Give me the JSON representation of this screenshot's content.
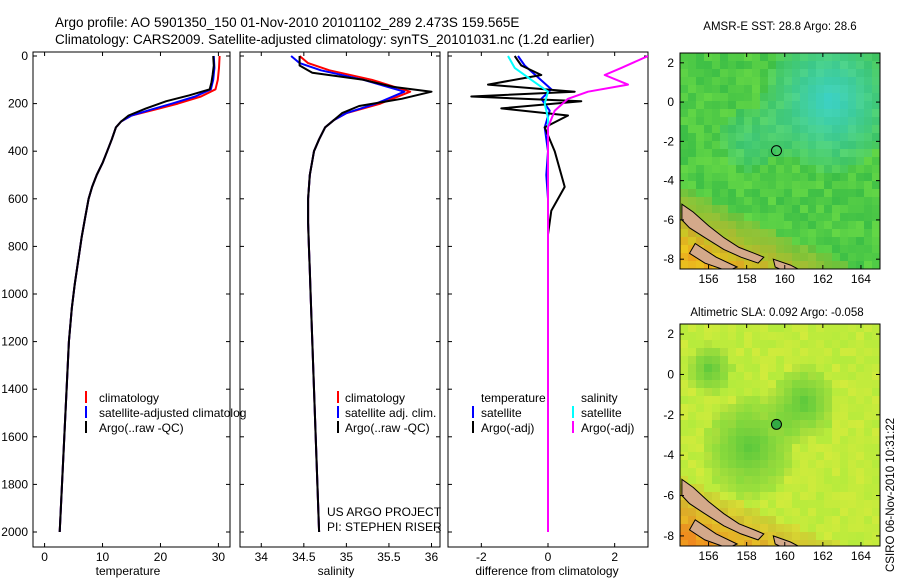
{
  "header": {
    "line1": "Argo profile: AO 5901350_150 01-Nov-2010 20101102_289 2.473S 159.565E",
    "line2": "Climatology: CARS2009. Satellite-adjusted climatology: synTS_20101031.nc (1.2d earlier)"
  },
  "colors": {
    "climatology": "#ff0000",
    "satellite": "#0000ff",
    "argo": "#000000",
    "satellite_diff_salinity": "#00ffff",
    "argo_diff_salinity": "#ff00ff",
    "land": "#d4a98a"
  },
  "depth_axis": {
    "min": 0,
    "max": 2000,
    "ticks": [
      "0",
      "200",
      "400",
      "600",
      "800",
      "1000",
      "1200",
      "1400",
      "1600",
      "1800",
      "2000"
    ]
  },
  "panels": {
    "temperature": {
      "xlabel": "temperature",
      "xlim": [
        -2,
        32
      ],
      "ticks": [
        "0",
        "10",
        "20",
        "30"
      ],
      "legend": [
        "climatology",
        "satellite-adjusted climatolog",
        "Argo(..raw -QC)"
      ]
    },
    "salinity": {
      "xlabel": "salinity",
      "xlim": [
        33.75,
        36.1
      ],
      "ticks": [
        "34",
        "34.5",
        "35",
        "35.5",
        "36"
      ],
      "legend": [
        "climatology",
        "satellite adj. clim.",
        "Argo(..raw -QC)"
      ],
      "credit1": "US ARGO PROJECT",
      "credit2": "PI: STEPHEN RISER"
    },
    "difference": {
      "xlabel": "difference from climatology",
      "xlim": [
        -3,
        3
      ],
      "ticks": [
        "-2",
        "0",
        "2"
      ],
      "legend_temp_title": "temperature",
      "legend_temp": [
        "satellite",
        "Argo(-adj)"
      ],
      "legend_sal_title": "salinity",
      "legend_sal": [
        "satellite",
        "Argo(-adj)"
      ]
    }
  },
  "maps": {
    "sst": {
      "title": "AMSR-E SST: 28.8 Argo: 28.6",
      "xticks": [
        "156",
        "158",
        "160",
        "162",
        "164"
      ],
      "yticks": [
        "2",
        "0",
        "-2",
        "-4",
        "-6",
        "-8"
      ],
      "xlim": [
        154.5,
        165
      ],
      "ylim": [
        -8.5,
        2.5
      ],
      "float_lon": 159.565,
      "float_lat": -2.473
    },
    "sla": {
      "title": "Altimetric SLA: 0.092 Argo: -0.058",
      "xticks": [
        "156",
        "158",
        "160",
        "162",
        "164"
      ],
      "yticks": [
        "2",
        "0",
        "-2",
        "-4",
        "-6",
        "-8"
      ],
      "xlim": [
        154.5,
        165
      ],
      "ylim": [
        -8.5,
        2.5
      ],
      "float_lon": 159.565,
      "float_lat": -2.473
    }
  },
  "stamp": "CSIRO 06-Nov-2010 10:31:22",
  "chart_data": [
    {
      "type": "line",
      "xlabel": "temperature",
      "ylabel": "",
      "xlim": [
        -2,
        32
      ],
      "ylim": [
        2000,
        0
      ],
      "series": [
        {
          "name": "climatology",
          "color": "#ff0000",
          "points": [
            [
              30.2,
              0
            ],
            [
              30.1,
              50
            ],
            [
              29.9,
              100
            ],
            [
              29.5,
              140
            ],
            [
              27,
              170
            ],
            [
              23,
              200
            ],
            [
              19,
              225
            ],
            [
              15,
              250
            ],
            [
              13.2,
              275
            ],
            [
              12.3,
              300
            ],
            [
              11.6,
              350
            ],
            [
              10.8,
              400
            ],
            [
              10,
              450
            ],
            [
              9,
              500
            ],
            [
              8.2,
              550
            ],
            [
              7.6,
              600
            ],
            [
              7,
              680
            ],
            [
              6.4,
              760
            ],
            [
              5.8,
              860
            ],
            [
              5.2,
              960
            ],
            [
              4.7,
              1060
            ],
            [
              4.2,
              1200
            ],
            [
              3.8,
              1400
            ],
            [
              3.4,
              1600
            ],
            [
              3,
              1800
            ],
            [
              2.6,
              2000
            ]
          ]
        },
        {
          "name": "satellite-adjusted climatolog",
          "color": "#0000ff",
          "points": [
            [
              29.2,
              0
            ],
            [
              29.3,
              50
            ],
            [
              29.1,
              100
            ],
            [
              28.7,
              140
            ],
            [
              26,
              170
            ],
            [
              22,
              200
            ],
            [
              18.4,
              225
            ],
            [
              15,
              250
            ],
            [
              13.2,
              275
            ],
            [
              12.3,
              300
            ],
            [
              11.6,
              350
            ],
            [
              10.8,
              400
            ],
            [
              10,
              450
            ],
            [
              9,
              500
            ],
            [
              8.2,
              550
            ],
            [
              7.6,
              600
            ],
            [
              7,
              680
            ],
            [
              6.4,
              760
            ],
            [
              5.8,
              860
            ],
            [
              5.2,
              960
            ],
            [
              4.7,
              1060
            ],
            [
              4.2,
              1200
            ],
            [
              3.8,
              1400
            ],
            [
              3.4,
              1600
            ],
            [
              3,
              1800
            ],
            [
              2.6,
              2000
            ]
          ]
        },
        {
          "name": "Argo(..raw -QC)",
          "color": "#000000",
          "points": [
            [
              29.1,
              0
            ],
            [
              29.2,
              40
            ],
            [
              29.0,
              80
            ],
            [
              28.8,
              110
            ],
            [
              28.5,
              140
            ],
            [
              25,
              165
            ],
            [
              21,
              190
            ],
            [
              17.5,
              220
            ],
            [
              14.5,
              250
            ],
            [
              13.2,
              275
            ],
            [
              12.3,
              300
            ],
            [
              11.6,
              350
            ],
            [
              10.8,
              400
            ],
            [
              10,
              450
            ],
            [
              9,
              500
            ],
            [
              8.2,
              550
            ],
            [
              7.6,
              600
            ],
            [
              7,
              680
            ],
            [
              6.4,
              760
            ],
            [
              5.8,
              860
            ],
            [
              5.2,
              960
            ],
            [
              4.7,
              1060
            ],
            [
              4.2,
              1200
            ],
            [
              3.8,
              1400
            ],
            [
              3.4,
              1600
            ],
            [
              3,
              1800
            ],
            [
              2.6,
              2000
            ]
          ]
        }
      ]
    },
    {
      "type": "line",
      "xlabel": "salinity",
      "ylabel": "",
      "xlim": [
        33.75,
        36.1
      ],
      "ylim": [
        2000,
        0
      ],
      "series": [
        {
          "name": "climatology",
          "color": "#ff0000",
          "points": [
            [
              34.45,
              0
            ],
            [
              34.55,
              30
            ],
            [
              34.8,
              60
            ],
            [
              35.3,
              100
            ],
            [
              35.75,
              150
            ],
            [
              35.4,
              200
            ],
            [
              35.0,
              240
            ],
            [
              34.85,
              270
            ],
            [
              34.75,
              300
            ],
            [
              34.68,
              350
            ],
            [
              34.62,
              400
            ],
            [
              34.57,
              500
            ],
            [
              34.55,
              600
            ],
            [
              34.55,
              700
            ],
            [
              34.56,
              800
            ],
            [
              34.57,
              900
            ],
            [
              34.58,
              1000
            ],
            [
              34.6,
              1200
            ],
            [
              34.62,
              1400
            ],
            [
              34.64,
              1600
            ],
            [
              34.66,
              1800
            ],
            [
              34.68,
              2000
            ]
          ]
        },
        {
          "name": "satellite adj. clim.",
          "color": "#0000ff",
          "points": [
            [
              34.35,
              0
            ],
            [
              34.45,
              30
            ],
            [
              34.7,
              60
            ],
            [
              35.2,
              100
            ],
            [
              35.68,
              150
            ],
            [
              35.35,
              200
            ],
            [
              35.0,
              240
            ],
            [
              34.85,
              270
            ],
            [
              34.75,
              300
            ],
            [
              34.68,
              350
            ],
            [
              34.62,
              400
            ],
            [
              34.57,
              500
            ],
            [
              34.55,
              600
            ],
            [
              34.55,
              700
            ],
            [
              34.56,
              800
            ],
            [
              34.57,
              900
            ],
            [
              34.58,
              1000
            ],
            [
              34.6,
              1200
            ],
            [
              34.62,
              1400
            ],
            [
              34.64,
              1600
            ],
            [
              34.66,
              1800
            ],
            [
              34.68,
              2000
            ]
          ]
        },
        {
          "name": "Argo(..raw -QC)",
          "color": "#000000",
          "points": [
            [
              34.45,
              0
            ],
            [
              34.45,
              40
            ],
            [
              34.6,
              70
            ],
            [
              35.2,
              100
            ],
            [
              35.55,
              130
            ],
            [
              36.0,
              150
            ],
            [
              35.65,
              180
            ],
            [
              35.15,
              210
            ],
            [
              34.95,
              240
            ],
            [
              34.85,
              270
            ],
            [
              34.75,
              300
            ],
            [
              34.68,
              350
            ],
            [
              34.62,
              400
            ],
            [
              34.57,
              500
            ],
            [
              34.55,
              600
            ],
            [
              34.55,
              700
            ],
            [
              34.56,
              800
            ],
            [
              34.57,
              900
            ],
            [
              34.58,
              1000
            ],
            [
              34.6,
              1200
            ],
            [
              34.62,
              1400
            ],
            [
              34.64,
              1600
            ],
            [
              34.66,
              1800
            ],
            [
              34.68,
              2000
            ]
          ]
        }
      ]
    },
    {
      "type": "line",
      "xlabel": "difference from climatology",
      "ylabel": "",
      "xlim": [
        -3,
        3
      ],
      "ylim": [
        2000,
        0
      ],
      "series": [
        {
          "name": "temperature satellite",
          "color": "#0000ff",
          "points": [
            [
              -0.9,
              0
            ],
            [
              -0.7,
              40
            ],
            [
              -0.3,
              90
            ],
            [
              0.1,
              140
            ],
            [
              -0.2,
              180
            ],
            [
              0.05,
              230
            ],
            [
              -0.1,
              300
            ],
            [
              0,
              400
            ],
            [
              -0.05,
              500
            ],
            [
              0,
              600
            ],
            [
              0,
              800
            ],
            [
              0,
              1000
            ],
            [
              0,
              1200
            ],
            [
              0,
              1400
            ],
            [
              0,
              1600
            ],
            [
              0,
              1800
            ],
            [
              0,
              2000
            ]
          ]
        },
        {
          "name": "temperature Argo(-adj)",
          "color": "#000000",
          "points": [
            [
              -1.0,
              0
            ],
            [
              -0.8,
              40
            ],
            [
              -0.2,
              80
            ],
            [
              -1.8,
              120
            ],
            [
              0.8,
              150
            ],
            [
              -2.3,
              170
            ],
            [
              1.0,
              190
            ],
            [
              -1.4,
              220
            ],
            [
              0.6,
              250
            ],
            [
              -0.1,
              300
            ],
            [
              0.2,
              400
            ],
            [
              0.5,
              550
            ],
            [
              0.1,
              650
            ],
            [
              0,
              750
            ],
            [
              0,
              1000
            ],
            [
              0,
              1400
            ],
            [
              0,
              1800
            ],
            [
              0,
              2000
            ]
          ]
        },
        {
          "name": "salinity satellite",
          "color": "#00ffff",
          "points": [
            [
              -1.2,
              0
            ],
            [
              -1.0,
              50
            ],
            [
              -0.5,
              100
            ],
            [
              0,
              150
            ],
            [
              -0.1,
              200
            ],
            [
              0,
              260
            ],
            [
              0,
              400
            ],
            [
              0,
              700
            ],
            [
              0,
              1000
            ],
            [
              0,
              1400
            ],
            [
              0,
              1800
            ],
            [
              0,
              2000
            ]
          ]
        },
        {
          "name": "salinity Argo(-adj)",
          "color": "#ff00ff",
          "points": [
            [
              3.0,
              0
            ],
            [
              2.2,
              50
            ],
            [
              1.7,
              80
            ],
            [
              2.4,
              120
            ],
            [
              1.2,
              150
            ],
            [
              0.6,
              180
            ],
            [
              0.2,
              230
            ],
            [
              0,
              300
            ],
            [
              0,
              400
            ],
            [
              0,
              700
            ],
            [
              0,
              1000
            ],
            [
              0,
              1400
            ],
            [
              0,
              1800
            ],
            [
              0,
              2000
            ]
          ]
        }
      ]
    }
  ]
}
